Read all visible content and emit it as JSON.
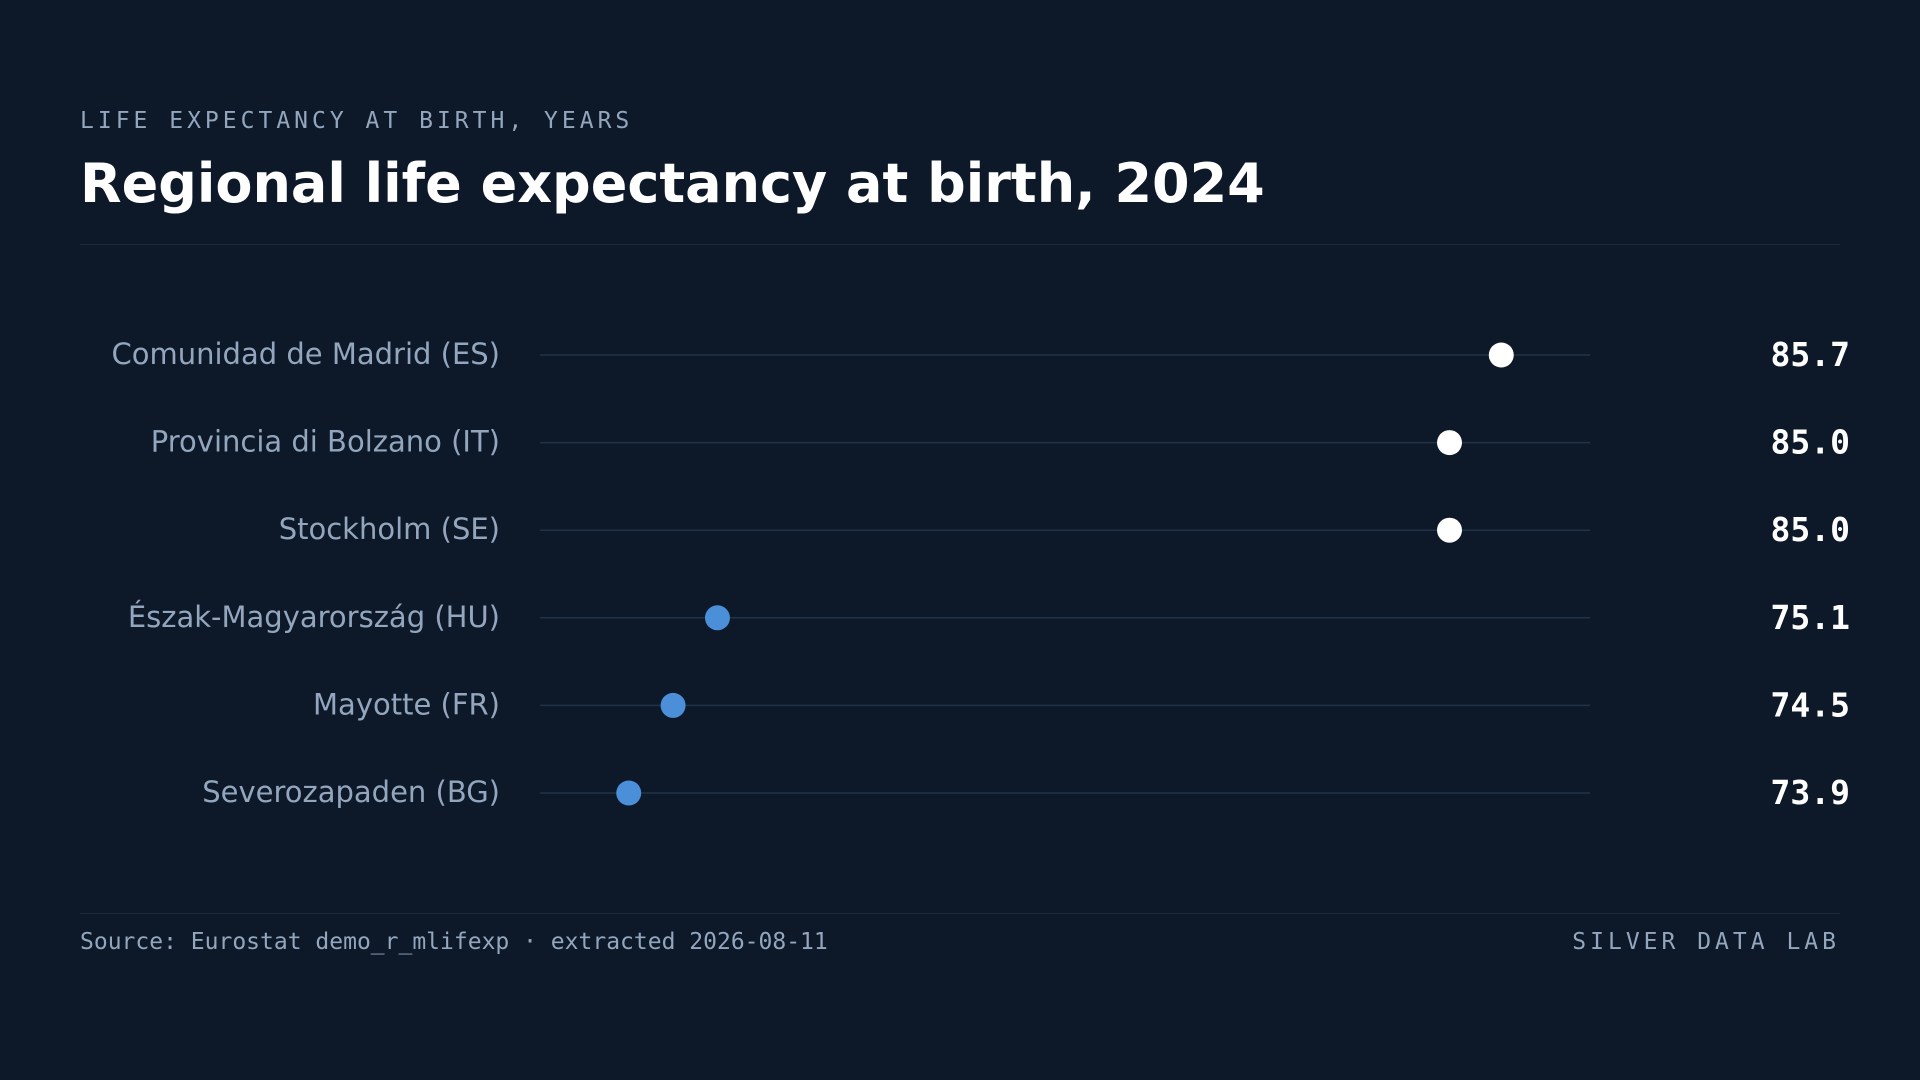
{
  "header": {
    "kicker": "LIFE EXPECTANCY AT BIRTH, YEARS",
    "title": "Regional life expectancy at birth, 2024"
  },
  "footer": {
    "source": "Source: Eurostat demo_r_mlifexp · extracted 2026-08-11",
    "brand": "SILVER DATA LAB"
  },
  "colors": {
    "background": "#0d1929",
    "track": "#1f3248",
    "high": "#ffffff",
    "low": "#4a8fd8",
    "label": "#93a6bd",
    "value": "#ffffff"
  },
  "chart_data": {
    "type": "scatter",
    "style": "dot-strip",
    "title": "Regional life expectancy at birth, 2024",
    "subtitle": "LIFE EXPECTANCY AT BIRTH, YEARS",
    "categories": [
      "Comunidad de Madrid (ES)",
      "Provincia di Bolzano (IT)",
      "Stockholm (SE)",
      "Észak-Magyarország (HU)",
      "Mayotte (FR)",
      "Severozapaden (BG)"
    ],
    "values": [
      85.7,
      85.0,
      85.0,
      75.1,
      74.5,
      73.9
    ],
    "value_labels": [
      "85.7",
      "85.0",
      "85.0",
      "75.1",
      "74.5",
      "73.9"
    ],
    "groups": [
      "high",
      "high",
      "high",
      "low",
      "low",
      "low"
    ],
    "xlim": [
      72.7,
      86.9
    ],
    "grid": false,
    "legend": "none"
  }
}
